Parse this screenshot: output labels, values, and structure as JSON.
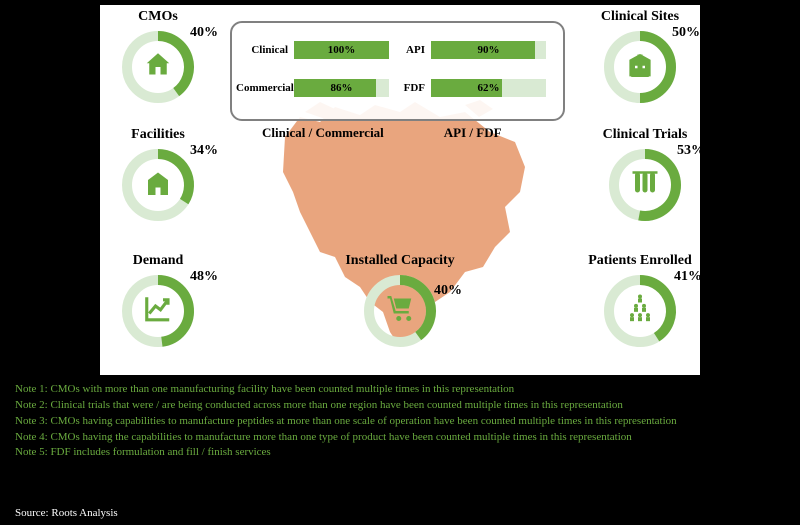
{
  "colors": {
    "bg": "#000000",
    "panel": "#ffffff",
    "donut_track": "#d9ead3",
    "donut_fill": "#6aab3f",
    "map_fill": "#e8a178",
    "box_border": "#808080",
    "note_text": "#6aab3f",
    "source_text": "#ffffff"
  },
  "metrics": {
    "cmos": {
      "title": "CMOs",
      "pct": 40
    },
    "facilities": {
      "title": "Facilities",
      "pct": 34
    },
    "demand": {
      "title": "Demand",
      "pct": 48
    },
    "installed": {
      "title": "Installed Capacity",
      "pct": 40
    },
    "clinical_sites": {
      "title": "Clinical Sites",
      "pct": 50
    },
    "clinical_trials": {
      "title": "Clinical Trials",
      "pct": 53
    },
    "patients": {
      "title": "Patients Enrolled",
      "pct": 41
    }
  },
  "center_bars": {
    "header_left": "Clinical / Commercial",
    "header_right": "API / FDF",
    "rows": [
      {
        "left_label": "Clinical",
        "left_pct": 100,
        "right_label": "API",
        "right_pct": 90
      },
      {
        "left_label": "Commercial",
        "left_pct": 86,
        "right_label": "FDF",
        "right_pct": 62
      }
    ]
  },
  "notes": [
    "Note 1: CMOs with more than one manufacturing facility have been counted multiple times in this representation",
    "Note 2: Clinical trials that were / are being conducted across more than one region have been counted multiple times in this representation",
    "Note 3: CMOs having capabilities to manufacture peptides at more than one scale of operation have been counted multiple times in this representation",
    "Note 4: CMOs having the capabilities to manufacture more than one type of product have been counted multiple times in this representation",
    "Note 5: FDF includes formulation and fill / finish services"
  ],
  "source": "Source: Roots Analysis",
  "donut_style": {
    "outer_r": 36,
    "inner_r": 26
  }
}
